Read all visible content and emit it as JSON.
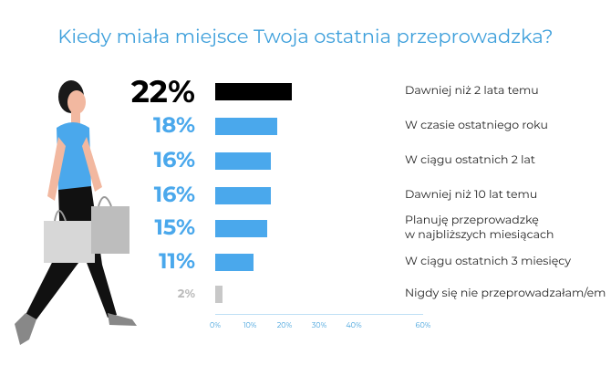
{
  "chart_data": {
    "type": "bar",
    "orientation": "horizontal",
    "title": "Kiedy miała miejsce Twoja ostatnia przeprowadzka?",
    "categories": [
      "Dawniej niż 2 lata temu",
      "W czasie ostatniego roku",
      "W ciągu ostatnich 2 lat",
      "Dawniej niż 10 lat temu",
      "Planuję przeprowadzkę\nw najbliższych miesiącach",
      "W ciągu ostatnich 3 miesięcy",
      "Nigdy się nie przeprowadzałam/em"
    ],
    "values": [
      22,
      18,
      16,
      16,
      15,
      11,
      2
    ],
    "value_labels": [
      "22%",
      "18%",
      "16%",
      "16%",
      "15%",
      "11%",
      "2%"
    ],
    "colors": [
      "#000000",
      "#4aa8ec",
      "#4aa8ec",
      "#4aa8ec",
      "#4aa8ec",
      "#4aa8ec",
      "#c8c8c8"
    ],
    "xlim": [
      0,
      60
    ],
    "xticks": [
      {
        "value": 0,
        "label": "0%"
      },
      {
        "value": 10,
        "label": "10%"
      },
      {
        "value": 20,
        "label": "20%"
      },
      {
        "value": 30,
        "label": "30%"
      },
      {
        "value": 40,
        "label": "40%"
      },
      {
        "value": 60,
        "label": "60%"
      }
    ]
  }
}
